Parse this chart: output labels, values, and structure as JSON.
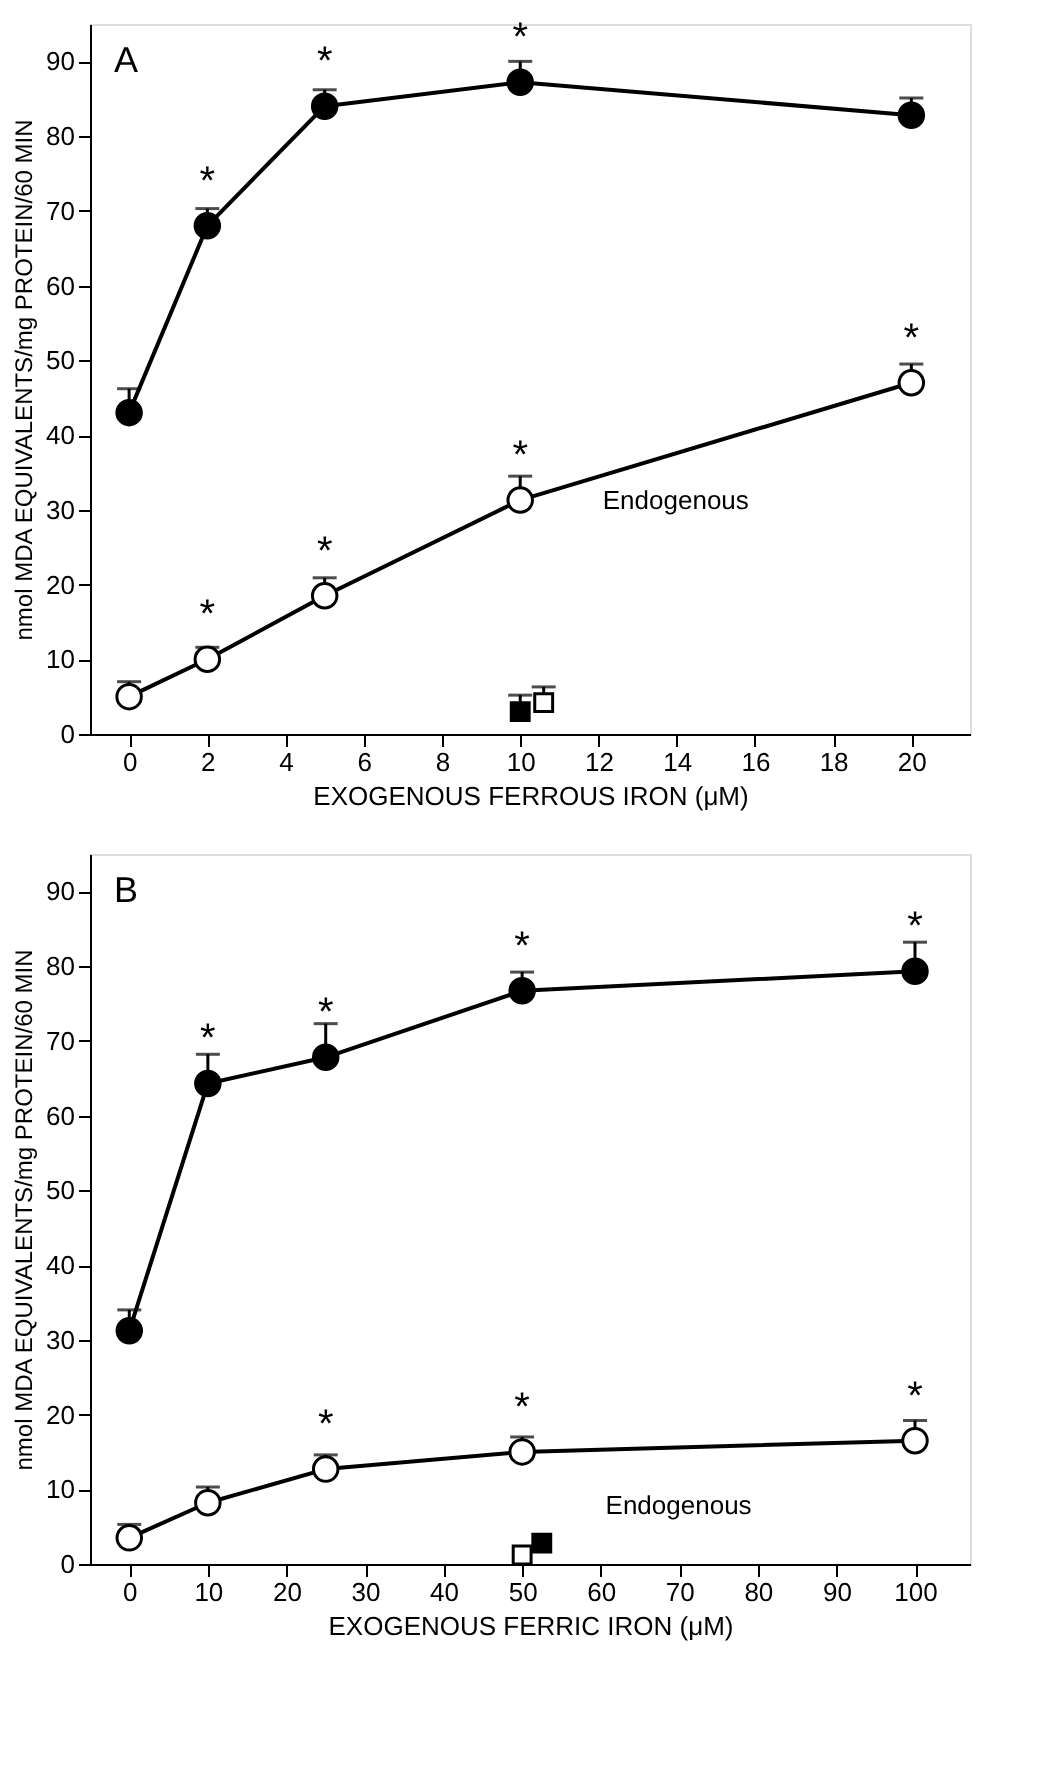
{
  "chart_data": [
    {
      "type": "line",
      "title": "A",
      "xlabel": "EXOGENOUS FERROUS IRON (μM)",
      "ylabel": "nmol MDA EQUIVALENTS/mg PROTEIN/60 MIN",
      "xlim": [
        -1,
        21.5
      ],
      "xticks": [
        0,
        2,
        4,
        6,
        8,
        10,
        12,
        14,
        16,
        18,
        20
      ],
      "ylim": [
        0,
        95
      ],
      "yticks": [
        0,
        10,
        20,
        30,
        40,
        50,
        60,
        70,
        80,
        90
      ],
      "grid": false,
      "marker": "circle",
      "line_style": "solid",
      "series": [
        {
          "color": "#000000",
          "x": [
            0,
            2,
            5,
            10,
            20
          ],
          "values": [
            43,
            68,
            84,
            87.2,
            82.8
          ],
          "errors": [
            [
              43,
              46.2
            ],
            [
              68,
              70.3
            ],
            [
              84,
              86.2
            ],
            [
              87.2,
              90
            ],
            [
              82.8,
              85.1
            ]
          ]
        },
        {
          "name": "Endogenous",
          "color": "#ffffff",
          "x": [
            0,
            2,
            5,
            10,
            20
          ],
          "values": [
            5,
            10,
            18.5,
            31.3,
            47
          ],
          "errors": [
            [
              5,
              7
            ],
            [
              10,
              11.6
            ],
            [
              18.5,
              20.9
            ],
            [
              31.3,
              34.5
            ],
            [
              47,
              49.5
            ]
          ]
        },
        {
          "type": "scatter",
          "marker": "square",
          "color": "#000000",
          "x": [
            10
          ],
          "values": [
            3
          ],
          "errors": [
            [
              3,
              5.2
            ]
          ]
        },
        {
          "type": "scatter",
          "marker": "square",
          "color": "#ffffff",
          "x": [
            10.6
          ],
          "values": [
            4.2
          ],
          "errors": [
            [
              4.2,
              6.3
            ]
          ]
        }
      ],
      "annotations": [
        {
          "text": "*",
          "x": 2,
          "y": 68
        },
        {
          "text": "*",
          "x": 5,
          "y": 84
        },
        {
          "text": "*",
          "x": 10,
          "y": 87.2
        },
        {
          "text": "*",
          "x": 2,
          "y": 10
        },
        {
          "text": "*",
          "x": 5,
          "y": 18.5
        },
        {
          "text": "*",
          "x": 10,
          "y": 31.3
        },
        {
          "text": "*",
          "x": 20,
          "y": 47
        }
      ]
    },
    {
      "type": "line",
      "title": "B",
      "xlabel": "EXOGENOUS FERRIC IRON (μM)",
      "ylabel": "nmol MDA EQUIVALENTS/mg PROTEIN/60 MIN",
      "xlim": [
        -5,
        107
      ],
      "xticks": [
        0,
        10,
        20,
        30,
        40,
        50,
        60,
        70,
        80,
        90,
        100
      ],
      "ylim": [
        0,
        95
      ],
      "yticks": [
        0,
        10,
        20,
        30,
        40,
        50,
        60,
        70,
        80,
        90
      ],
      "grid": false,
      "marker": "circle",
      "line_style": "solid",
      "series": [
        {
          "color": "#000000",
          "x": [
            0,
            10,
            25,
            50,
            100
          ],
          "values": [
            31.2,
            64.3,
            67.8,
            76.7,
            79.3
          ],
          "errors": [
            [
              31.2,
              34
            ],
            [
              64.3,
              68.2
            ],
            [
              67.8,
              72.3
            ],
            [
              76.7,
              79.2
            ],
            [
              79.3,
              83.2
            ]
          ]
        },
        {
          "name": "Endogenous",
          "color": "#ffffff",
          "x": [
            0,
            10,
            25,
            50,
            100
          ],
          "values": [
            3.5,
            8.2,
            12.7,
            15,
            16.5
          ],
          "errors": [
            [
              3.5,
              5.3
            ],
            [
              8.2,
              10.3
            ],
            [
              12.7,
              14.6
            ],
            [
              15,
              17
            ],
            [
              16.5,
              19.2
            ]
          ]
        },
        {
          "type": "scatter",
          "marker": "square",
          "color": "#ffffff",
          "x": [
            50
          ],
          "values": [
            1.2
          ]
        },
        {
          "type": "scatter",
          "marker": "square",
          "color": "#000000",
          "x": [
            52.5
          ],
          "values": [
            2.8
          ]
        }
      ],
      "annotations": [
        {
          "text": "*",
          "x": 10,
          "y": 64.3
        },
        {
          "text": "*",
          "x": 25,
          "y": 67.8
        },
        {
          "text": "*",
          "x": 50,
          "y": 76.7
        },
        {
          "text": "*",
          "x": 100,
          "y": 79.3
        },
        {
          "text": "*",
          "x": 25,
          "y": 12.7
        },
        {
          "text": "*",
          "x": 50,
          "y": 15
        },
        {
          "text": "*",
          "x": 100,
          "y": 16.5
        }
      ]
    }
  ]
}
